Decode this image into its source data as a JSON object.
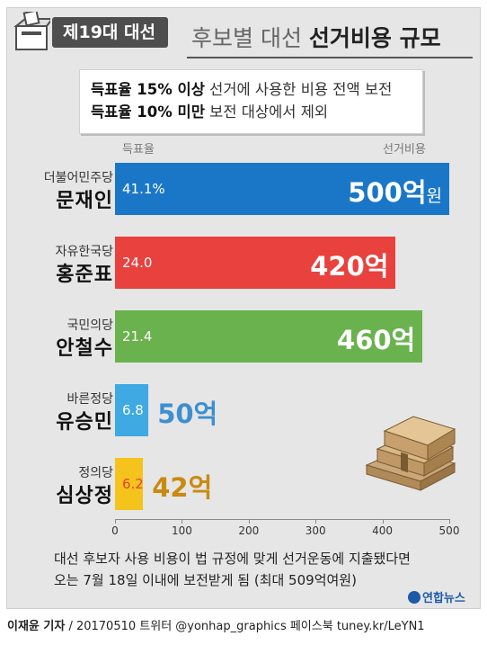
{
  "header": {
    "badge": "제19대 대선",
    "title_light": "후보별 대선 ",
    "title_bold": "선거비용 규모"
  },
  "notice": {
    "line1_bold": "득표율 15% 이상",
    "line1_rest": " 선거에 사용한 비용 전액 보전",
    "line2_bold": "득표율 10% 미만",
    "line2_rest": " 보전 대상에서 제외"
  },
  "chart_data": {
    "type": "bar",
    "orientation": "horizontal",
    "column_labels": {
      "rate": "득표율",
      "cost": "선거비용"
    },
    "categories": [
      "문재인",
      "홍준표",
      "안철수",
      "유승민",
      "심상정"
    ],
    "parties": [
      "더불어민주당",
      "자유한국당",
      "국민의당",
      "바른정당",
      "정의당"
    ],
    "values": [
      500,
      420,
      460,
      50,
      42
    ],
    "vote_rate_labels": [
      "41.1%",
      "24.0",
      "21.4",
      "6.8",
      "6.2"
    ],
    "cost_labels": [
      "500억",
      "420억",
      "460억",
      "50억",
      "42억"
    ],
    "first_unit_label": "원",
    "colors": [
      "#1a77c8",
      "#e8413e",
      "#6ab24e",
      "#3ea9e3",
      "#f4c41c"
    ],
    "cost_text_colors": [
      "#ffffff",
      "#ffffff",
      "#ffffff",
      "#3c8fd0",
      "#c88a10"
    ],
    "rate_text_colors": [
      "#ffffff",
      "#ffffff",
      "#ffffff",
      "#ffffff",
      "#e8413e"
    ],
    "xlim": [
      0,
      500
    ],
    "xticks": [
      0,
      100,
      200,
      300,
      400,
      500
    ]
  },
  "footnote": {
    "line1": "대선 후보자 사용 비용이 법 규정에 맞게 선거운동에 지출됐다면",
    "line2": "오는 7월 18일 이내에 보전받게 됨 (최대 509억여원)"
  },
  "logo": "연합뉴스",
  "credit": {
    "author": "이재윤 기자",
    "rest": " / 20170510   트위터 @yonhap_graphics  페이스북 tuney.kr/LeYN1"
  }
}
